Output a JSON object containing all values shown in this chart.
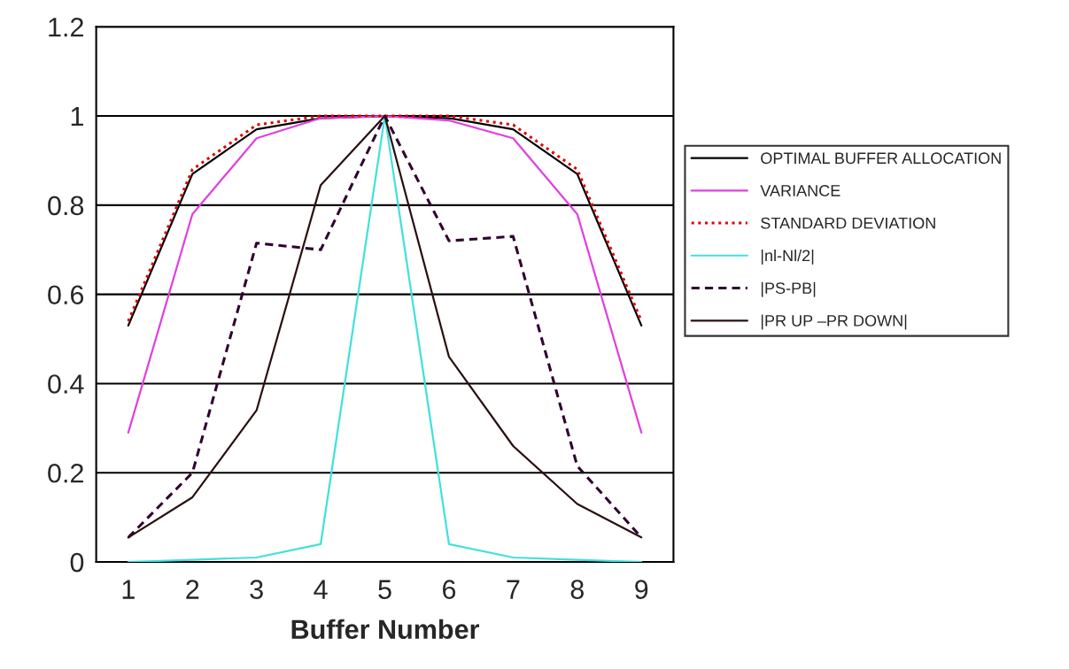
{
  "chart_data": {
    "type": "line",
    "xlabel": "Buffer Number",
    "categories": [
      "1",
      "2",
      "3",
      "4",
      "5",
      "6",
      "7",
      "8",
      "9"
    ],
    "series": [
      {
        "name": "OPTIMAL BUFFER ALLOCATION",
        "color": "#000000",
        "line_style": "solid",
        "values": [
          0.53,
          0.87,
          0.97,
          0.995,
          1,
          0.995,
          0.97,
          0.87,
          0.53
        ]
      },
      {
        "name": "VARIANCE",
        "color": "#e040e0",
        "line_style": "solid",
        "values": [
          0.29,
          0.78,
          0.95,
          0.995,
          1,
          0.99,
          0.95,
          0.78,
          0.29
        ]
      },
      {
        "name": "STANDARD DEVIATION",
        "color": "#e00000",
        "line_style": "dotted",
        "values": [
          0.54,
          0.88,
          0.98,
          1,
          1,
          1,
          0.98,
          0.88,
          0.54
        ]
      },
      {
        "name": "|nl-Nl/2|",
        "color": "#40e0e0",
        "line_style": "solid",
        "values": [
          0,
          0.005,
          0.01,
          0.04,
          1,
          0.04,
          0.01,
          0.005,
          0
        ]
      },
      {
        "name": "|PS-PB|",
        "color": "#300030",
        "line_style": "dashed",
        "values": [
          0.055,
          0.2,
          0.715,
          0.7,
          1,
          0.72,
          0.73,
          0.215,
          0.055
        ]
      },
      {
        "name": "|PR UP –PR DOWN|",
        "color": "#2a1010",
        "line_style": "solid",
        "values": [
          0.055,
          0.145,
          0.34,
          0.845,
          1,
          0.46,
          0.26,
          0.13,
          0.055
        ]
      }
    ],
    "ylim": [
      0,
      1.2
    ],
    "yticks": [
      0,
      0.2,
      0.4,
      0.6,
      0.8,
      1,
      1.2
    ],
    "grid": "y",
    "legend": "right",
    "marker": "none"
  }
}
